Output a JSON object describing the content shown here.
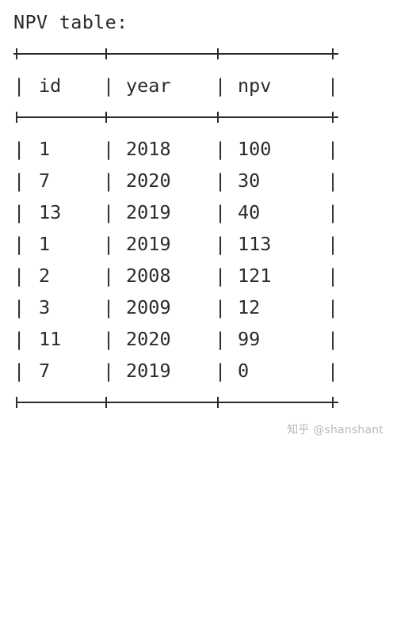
{
  "document": {
    "title": "NPV table:",
    "pipe": "|"
  },
  "table": {
    "columns": [
      "id",
      "year",
      "npv"
    ],
    "rows": [
      [
        "1",
        "2018",
        "100"
      ],
      [
        "7",
        "2020",
        "30"
      ],
      [
        "13",
        "2019",
        "40"
      ],
      [
        "1",
        "2019",
        "113"
      ],
      [
        "2",
        "2008",
        "121"
      ],
      [
        "3",
        "2009",
        "12"
      ],
      [
        "11",
        "2020",
        "99"
      ],
      [
        "7",
        "2019",
        "0"
      ]
    ]
  },
  "watermark": {
    "text": "知乎 @shanshant"
  },
  "colors": {
    "text": "#2b2b2b",
    "background": "#ffffff",
    "watermark": "#b9b9b9"
  }
}
